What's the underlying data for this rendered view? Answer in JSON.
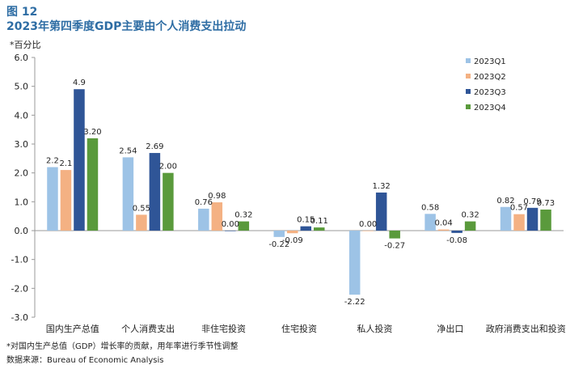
{
  "figure": {
    "label": "图 12",
    "title": "2023年第四季度GDP主要由个人消费支出拉动",
    "unit": "*百分比",
    "note": "*对国内生产总值（GDP）增长率的贡献，用年率进行季节性调整",
    "source": "数据来源：Bureau of Economic Analysis"
  },
  "chart_data": {
    "type": "bar",
    "title": "2023年第四季度GDP主要由个人消费支出拉动",
    "ylabel": "*百分比",
    "ylim": [
      -3.0,
      6.0
    ],
    "yticks": [
      "6.0",
      "5.0",
      "4.0",
      "3.0",
      "2.0",
      "1.0",
      "0.0",
      "-1.0",
      "-2.0",
      "-3.0"
    ],
    "ytick_values": [
      6,
      5,
      4,
      3,
      2,
      1,
      0,
      -1,
      -2,
      -3
    ],
    "categories": [
      "国内生产总值",
      "个人消费支出",
      "非住宅投资",
      "住宅投资",
      "私人投资",
      "净出口",
      "政府消费支出和投资"
    ],
    "legend_position": "top-right",
    "grid": false,
    "series": [
      {
        "name": "2023Q1",
        "color": "#9dc3e6",
        "values": [
          2.2,
          2.54,
          0.76,
          -0.22,
          -2.22,
          0.58,
          0.82
        ],
        "labels": [
          "2.2",
          "2.54",
          "0.76",
          "-0.22",
          "-2.22",
          "0.58",
          "0.82"
        ]
      },
      {
        "name": "2023Q2",
        "color": "#f4b183",
        "values": [
          2.1,
          0.55,
          0.98,
          -0.09,
          0.0,
          0.04,
          0.57
        ],
        "labels": [
          "2.1",
          "0.55",
          "0.98",
          "-0.09",
          "0.00",
          "0.04",
          "0.57"
        ]
      },
      {
        "name": "2023Q3",
        "color": "#2f5597",
        "values": [
          4.9,
          2.69,
          0.0,
          0.15,
          1.32,
          -0.08,
          0.79
        ],
        "labels": [
          "4.9",
          "2.69",
          "0.00",
          "0.15",
          "1.32",
          "-0.08",
          "0.79"
        ]
      },
      {
        "name": "2023Q4",
        "color": "#5a9a3c",
        "values": [
          3.2,
          2.0,
          0.32,
          0.11,
          -0.27,
          0.32,
          0.73
        ],
        "labels": [
          "3.20",
          "2.00",
          "0.32",
          "0.11",
          "-0.27",
          "0.32",
          "0.73"
        ]
      }
    ]
  }
}
